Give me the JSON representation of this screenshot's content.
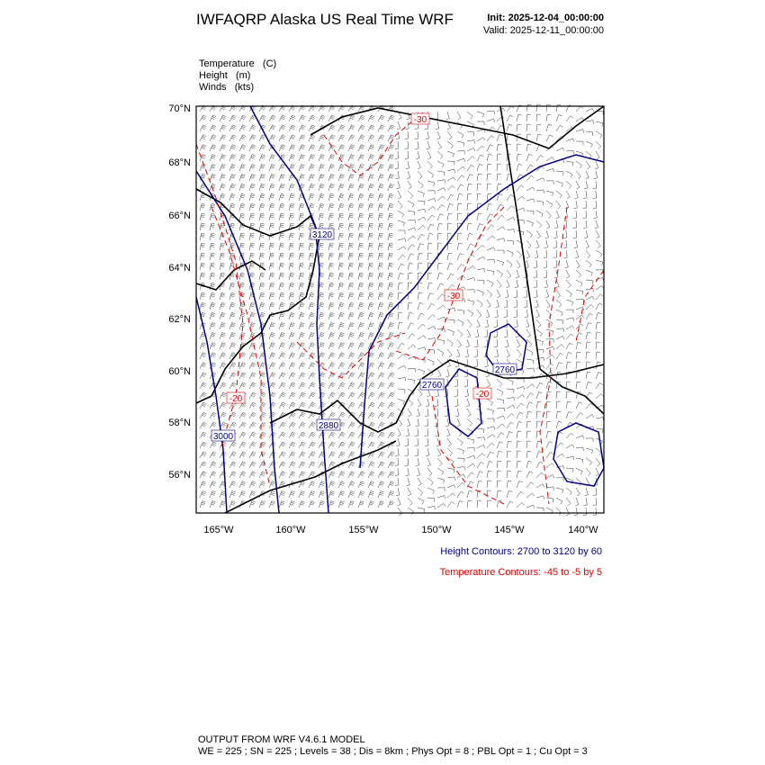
{
  "header": {
    "title": "IWFAQRP Alaska US Real Time WRF",
    "init": "Init: 2025-12-04_00:00:00",
    "valid": "Valid: 2025-12-11_00:00:00"
  },
  "fields": [
    "Temperature   (C)",
    "Height   (m)",
    "Winds   (kts)"
  ],
  "map": {
    "lat_labels": [
      "70°N",
      "68°N",
      "66°N",
      "64°N",
      "62°N",
      "60°N",
      "58°N",
      "56°N"
    ],
    "lon_labels": [
      "165°W",
      "160°W",
      "155°W",
      "150°W",
      "145°W",
      "140°W"
    ],
    "height_labels": [
      "3120",
      "2760",
      "3000",
      "2880",
      "2760"
    ],
    "temperature_labels": [
      "-30",
      "-30",
      "-20",
      "-20"
    ]
  },
  "legend": {
    "height": "Height Contours: 2700 to 3120 by 60",
    "temperature": "Temperature Contours: -45 to -5 by 5"
  },
  "footer": {
    "line1": "OUTPUT FROM WRF V4.6.1 MODEL",
    "line2": "WE = 225 ; SN = 225 ; Levels = 38 ; Dis = 8km ; Phys Opt = 8 ; PBL Opt = 1 ; Cu Opt = 3"
  }
}
